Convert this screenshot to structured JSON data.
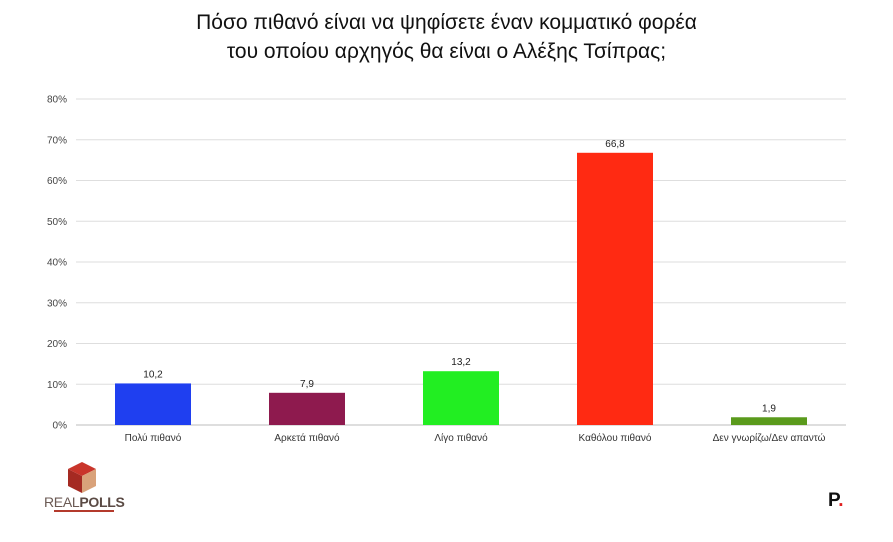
{
  "title_lines": [
    "Πόσο πιθανό είναι να ψηφίσετε έναν κομματικό φορέα",
    "του οποίου αρχηγός θα είναι ο Αλέξης Τσίπρας;"
  ],
  "chart_data": {
    "type": "bar",
    "title": "Πόσο πιθανό είναι να ψηφίσετε έναν κομματικό φορέα του οποίου αρχηγός θα είναι ο Αλέξης Τσίπρας;",
    "categories": [
      "Πολύ πιθανό",
      "Αρκετά πιθανό",
      "Λίγο πιθανό",
      "Καθόλου πιθανό",
      "Δεν γνωρίζω/Δεν απαντώ"
    ],
    "values": [
      10.2,
      7.9,
      13.2,
      66.8,
      1.9
    ],
    "value_labels": [
      "10,2",
      "7,9",
      "13,2",
      "66,8",
      "1,9"
    ],
    "colors": [
      "#1f3ff0",
      "#8e1a4e",
      "#22ee22",
      "#ff2a12",
      "#5a9a1c"
    ],
    "ylim": [
      0,
      80
    ],
    "yticks": [
      0,
      10,
      20,
      30,
      40,
      50,
      60,
      70,
      80
    ],
    "ytick_labels": [
      "0%",
      "10%",
      "20%",
      "30%",
      "40%",
      "50%",
      "60%",
      "70%",
      "80%"
    ],
    "grid": true,
    "xlabel": "",
    "ylabel": ""
  },
  "logo_left": {
    "brand_light": "REAL",
    "brand_bold": "POLLS"
  },
  "logo_right": {
    "letter": "P",
    "dot": "."
  }
}
